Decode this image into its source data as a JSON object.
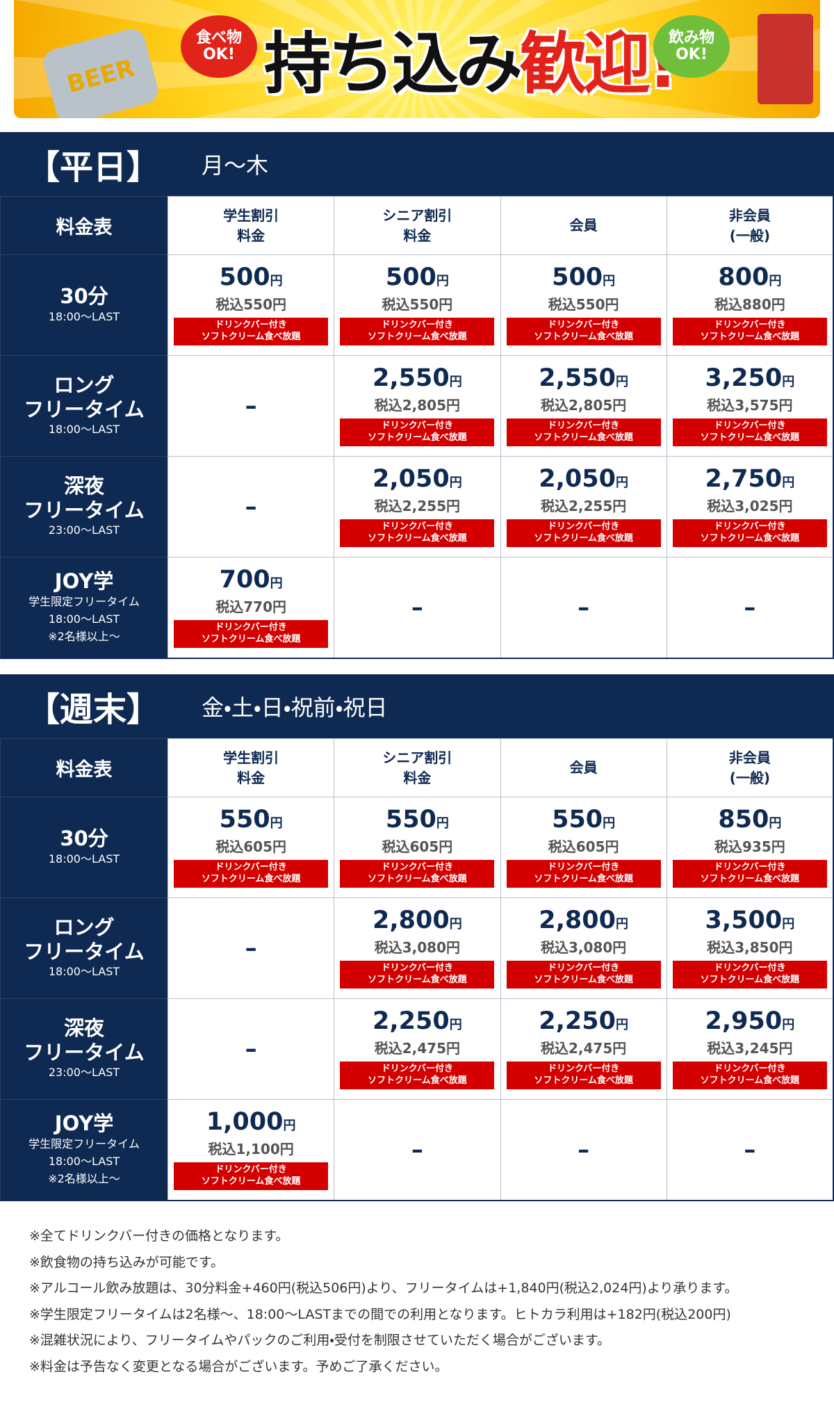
{
  "banner": {
    "left_bubble": [
      "食べ物",
      "OK!"
    ],
    "title_a": "持ち込み",
    "title_b": "歓迎!",
    "right_bubble": [
      "飲み物",
      "OK!"
    ],
    "beer": "BEER"
  },
  "sections": [
    {
      "title": "【平日】",
      "days": "月〜木",
      "header": {
        "corner": "料金表",
        "cols": [
          [
            "学生割引",
            "料金"
          ],
          [
            "シニア割引",
            "料金"
          ],
          [
            "会員"
          ],
          [
            "非会員",
            "(一般)"
          ]
        ]
      },
      "rows": [
        {
          "title": [
            "30分"
          ],
          "sub": [
            "18:00〜LAST"
          ],
          "cells": [
            {
              "price": "500",
              "unit": "円",
              "tax": "税込550円",
              "badge": [
                "ドリンクバー付き",
                "ソフトクリーム食べ放題"
              ]
            },
            {
              "price": "500",
              "unit": "円",
              "tax": "税込550円",
              "badge": [
                "ドリンクバー付き",
                "ソフトクリーム食べ放題"
              ]
            },
            {
              "price": "500",
              "unit": "円",
              "tax": "税込550円",
              "badge": [
                "ドリンクバー付き",
                "ソフトクリーム食べ放題"
              ]
            },
            {
              "price": "800",
              "unit": "円",
              "tax": "税込880円",
              "badge": [
                "ドリンクバー付き",
                "ソフトクリーム食べ放題"
              ]
            }
          ]
        },
        {
          "title": [
            "ロング",
            "フリータイム"
          ],
          "sub": [
            "18:00〜LAST"
          ],
          "cells": [
            {
              "dash": "–"
            },
            {
              "price": "2,550",
              "unit": "円",
              "tax": "税込2,805円",
              "badge": [
                "ドリンクバー付き",
                "ソフトクリーム食べ放題"
              ]
            },
            {
              "price": "2,550",
              "unit": "円",
              "tax": "税込2,805円",
              "badge": [
                "ドリンクバー付き",
                "ソフトクリーム食べ放題"
              ]
            },
            {
              "price": "3,250",
              "unit": "円",
              "tax": "税込3,575円",
              "badge": [
                "ドリンクバー付き",
                "ソフトクリーム食べ放題"
              ]
            }
          ]
        },
        {
          "title": [
            "深夜",
            "フリータイム"
          ],
          "sub": [
            "23:00〜LAST"
          ],
          "cells": [
            {
              "dash": "–"
            },
            {
              "price": "2,050",
              "unit": "円",
              "tax": "税込2,255円",
              "badge": [
                "ドリンクバー付き",
                "ソフトクリーム食べ放題"
              ]
            },
            {
              "price": "2,050",
              "unit": "円",
              "tax": "税込2,255円",
              "badge": [
                "ドリンクバー付き",
                "ソフトクリーム食べ放題"
              ]
            },
            {
              "price": "2,750",
              "unit": "円",
              "tax": "税込3,025円",
              "badge": [
                "ドリンクバー付き",
                "ソフトクリーム食べ放題"
              ]
            }
          ]
        },
        {
          "title": [
            "JOY学"
          ],
          "sub": [
            "学生限定フリータイム",
            "18:00〜LAST",
            "※2名様以上〜"
          ],
          "cells": [
            {
              "price": "700",
              "unit": "円",
              "tax": "税込770円",
              "badge": [
                "ドリンクバー付き",
                "ソフトクリーム食べ放題"
              ]
            },
            {
              "dash": "–"
            },
            {
              "dash": "–"
            },
            {
              "dash": "–"
            }
          ]
        }
      ]
    },
    {
      "title": "【週末】",
      "days": "金・土・日・祝前・祝日",
      "header": {
        "corner": "料金表",
        "cols": [
          [
            "学生割引",
            "料金"
          ],
          [
            "シニア割引",
            "料金"
          ],
          [
            "会員"
          ],
          [
            "非会員",
            "(一般)"
          ]
        ]
      },
      "rows": [
        {
          "title": [
            "30分"
          ],
          "sub": [
            "18:00〜LAST"
          ],
          "cells": [
            {
              "price": "550",
              "unit": "円",
              "tax": "税込605円",
              "badge": [
                "ドリンクバー付き",
                "ソフトクリーム食べ放題"
              ]
            },
            {
              "price": "550",
              "unit": "円",
              "tax": "税込605円",
              "badge": [
                "ドリンクバー付き",
                "ソフトクリーム食べ放題"
              ]
            },
            {
              "price": "550",
              "unit": "円",
              "tax": "税込605円",
              "badge": [
                "ドリンクバー付き",
                "ソフトクリーム食べ放題"
              ]
            },
            {
              "price": "850",
              "unit": "円",
              "tax": "税込935円",
              "badge": [
                "ドリンクバー付き",
                "ソフトクリーム食べ放題"
              ]
            }
          ]
        },
        {
          "title": [
            "ロング",
            "フリータイム"
          ],
          "sub": [
            "18:00〜LAST"
          ],
          "cells": [
            {
              "dash": "–"
            },
            {
              "price": "2,800",
              "unit": "円",
              "tax": "税込3,080円",
              "badge": [
                "ドリンクバー付き",
                "ソフトクリーム食べ放題"
              ]
            },
            {
              "price": "2,800",
              "unit": "円",
              "tax": "税込3,080円",
              "badge": [
                "ドリンクバー付き",
                "ソフトクリーム食べ放題"
              ]
            },
            {
              "price": "3,500",
              "unit": "円",
              "tax": "税込3,850円",
              "badge": [
                "ドリンクバー付き",
                "ソフトクリーム食べ放題"
              ]
            }
          ]
        },
        {
          "title": [
            "深夜",
            "フリータイム"
          ],
          "sub": [
            "23:00〜LAST"
          ],
          "cells": [
            {
              "dash": "–"
            },
            {
              "price": "2,250",
              "unit": "円",
              "tax": "税込2,475円",
              "badge": [
                "ドリンクバー付き",
                "ソフトクリーム食べ放題"
              ]
            },
            {
              "price": "2,250",
              "unit": "円",
              "tax": "税込2,475円",
              "badge": [
                "ドリンクバー付き",
                "ソフトクリーム食べ放題"
              ]
            },
            {
              "price": "2,950",
              "unit": "円",
              "tax": "税込3,245円",
              "badge": [
                "ドリンクバー付き",
                "ソフトクリーム食べ放題"
              ]
            }
          ]
        },
        {
          "title": [
            "JOY学"
          ],
          "sub": [
            "学生限定フリータイム",
            "18:00〜LAST",
            "※2名様以上〜"
          ],
          "cells": [
            {
              "price": "1,000",
              "unit": "円",
              "tax": "税込1,100円",
              "badge": [
                "ドリンクバー付き",
                "ソフトクリーム食べ放題"
              ]
            },
            {
              "dash": "–"
            },
            {
              "dash": "–"
            },
            {
              "dash": "–"
            }
          ]
        }
      ]
    }
  ],
  "notes": [
    "※全てドリンクバー付きの価格となります。",
    "※飲食物の持ち込みが可能です。",
    "※アルコール飲み放題は、30分料金+460円(税込506円)より、フリータイムは+1,840円(税込2,024円)より承ります。",
    "※学生限定フリータイムは2名様〜、18:00〜LASTまでの間での利用となります。ヒトカラ利用は+182円(税込200円)",
    "※混雑状況により、フリータイムやパックのご利用・受付を制限させていただく場合がございます。",
    "※料金は予告なく変更となる場合がございます。予めご了承ください。"
  ]
}
